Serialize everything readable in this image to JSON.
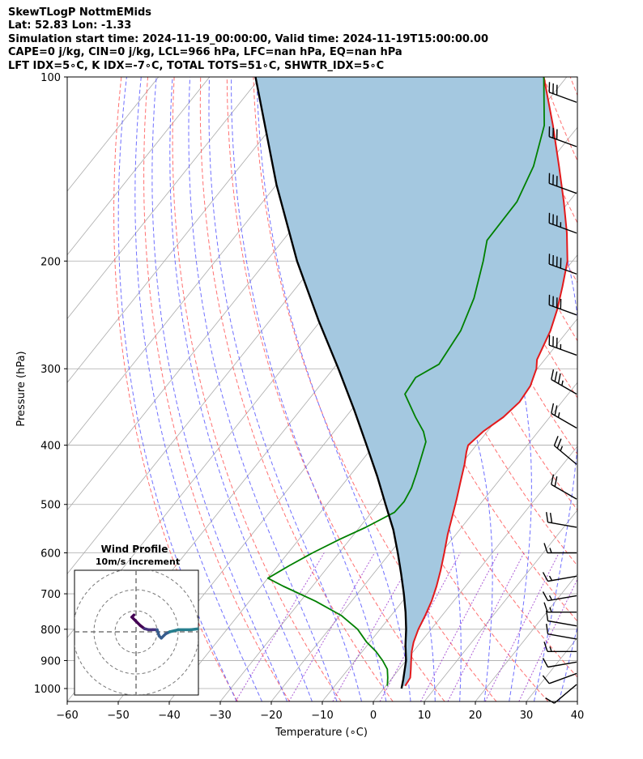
{
  "header": {
    "line1": "SkewTLogP NottmEMids",
    "line2": "Lat: 52.83   Lon: -1.33",
    "line3": "Simulation start time: 2024-11-19_00:00:00, Valid time: 2024-11-19T15:00:00.00",
    "line4": "CAPE=0 j/kg, CIN=0 j/kg, LCL=966 hPa, LFC=nan hPa, EQ=nan hPa",
    "line5": "LFT IDX=5∘C, K IDX=-7∘C, TOTAL TOTS=51∘C, SHWTR_IDX=5∘C"
  },
  "colors": {
    "temperature": "#e31a1c",
    "dewpoint": "#008000",
    "parcel": "#000000",
    "cape_fill": "#a4c8e0",
    "dry_adiabat": "#ff6060",
    "moist_adiabat": "#6060ff",
    "mixing_ratio": "#9933cc",
    "isotherm": "#aaaaaa"
  },
  "chart_data": {
    "type": "line",
    "title": "SkewTLogP NottmEMids",
    "xlabel": "Temperature (∘C)",
    "ylabel": "Pressure (hPa)",
    "xlim": [
      -60,
      40
    ],
    "ylim": [
      1050,
      100
    ],
    "yscale": "log",
    "skew": true,
    "x_ticks": [
      -60,
      -50,
      -40,
      -30,
      -20,
      -10,
      0,
      10,
      20,
      30,
      40
    ],
    "x_tick_labels": [
      "−60",
      "−50",
      "−40",
      "−30",
      "−20",
      "−10",
      "0",
      "10",
      "20",
      "30",
      "40"
    ],
    "y_ticks": [
      1000,
      900,
      800,
      700,
      600,
      500,
      400,
      300,
      200,
      100
    ],
    "y_tick_labels": [
      "1000",
      "900",
      "800",
      "700",
      "600",
      "500",
      "400",
      "300",
      "200",
      "100"
    ],
    "series": [
      {
        "name": "Temperature",
        "points": [
          [
            990,
            3.8
          ],
          [
            960,
            3.5
          ],
          [
            930,
            2.3
          ],
          [
            900,
            1.0
          ],
          [
            870,
            -0.3
          ],
          [
            840,
            -1.4
          ],
          [
            800,
            -2.5
          ],
          [
            760,
            -3.3
          ],
          [
            720,
            -4.3
          ],
          [
            680,
            -5.7
          ],
          [
            640,
            -7.4
          ],
          [
            600,
            -9.4
          ],
          [
            560,
            -11.6
          ],
          [
            520,
            -13.7
          ],
          [
            490,
            -15.4
          ],
          [
            460,
            -17.3
          ],
          [
            430,
            -19.3
          ],
          [
            410,
            -20.9
          ],
          [
            400,
            -21.6
          ],
          [
            380,
            -20.8
          ],
          [
            360,
            -19.1
          ],
          [
            340,
            -18.3
          ],
          [
            320,
            -18.7
          ],
          [
            300,
            -20.2
          ],
          [
            290,
            -21.5
          ],
          [
            260,
            -23.4
          ],
          [
            240,
            -25.4
          ],
          [
            220,
            -28.0
          ],
          [
            200,
            -31.0
          ],
          [
            180,
            -35.5
          ],
          [
            160,
            -41.0
          ],
          [
            140,
            -47.5
          ],
          [
            120,
            -55.1
          ],
          [
            100,
            -64.5
          ]
        ]
      },
      {
        "name": "Dewpoint",
        "points": [
          [
            990,
            0.3
          ],
          [
            960,
            -0.9
          ],
          [
            930,
            -2.3
          ],
          [
            900,
            -4.6
          ],
          [
            870,
            -7.3
          ],
          [
            840,
            -10.6
          ],
          [
            800,
            -14.4
          ],
          [
            760,
            -19.7
          ],
          [
            720,
            -27.0
          ],
          [
            680,
            -35.8
          ],
          [
            660,
            -40.0
          ],
          [
            630,
            -37.8
          ],
          [
            600,
            -35.2
          ],
          [
            570,
            -32.0
          ],
          [
            545,
            -28.8
          ],
          [
            515,
            -25.5
          ],
          [
            495,
            -25.3
          ],
          [
            470,
            -26.0
          ],
          [
            445,
            -27.3
          ],
          [
            420,
            -28.8
          ],
          [
            395,
            -30.4
          ],
          [
            380,
            -32.5
          ],
          [
            360,
            -36.3
          ],
          [
            330,
            -42.0
          ],
          [
            310,
            -42.5
          ],
          [
            295,
            -40.0
          ],
          [
            260,
            -41.0
          ],
          [
            230,
            -43.5
          ],
          [
            200,
            -47.5
          ],
          [
            185,
            -50.0
          ],
          [
            160,
            -50.2
          ],
          [
            140,
            -52.5
          ],
          [
            120,
            -56.8
          ],
          [
            100,
            -64.5
          ]
        ]
      },
      {
        "name": "Parcel",
        "points": [
          [
            1000,
            3.5
          ],
          [
            966,
            2.4
          ],
          [
            900,
            0.0
          ],
          [
            850,
            -2.5
          ],
          [
            800,
            -4.9
          ],
          [
            750,
            -7.7
          ],
          [
            700,
            -10.9
          ],
          [
            650,
            -14.5
          ],
          [
            600,
            -18.5
          ],
          [
            550,
            -23.0
          ],
          [
            500,
            -28.5
          ],
          [
            450,
            -34.5
          ],
          [
            400,
            -41.5
          ],
          [
            350,
            -49.5
          ],
          [
            300,
            -59.0
          ],
          [
            250,
            -70.5
          ],
          [
            200,
            -84.0
          ],
          [
            150,
            -100.0
          ],
          [
            100,
            -121.0
          ]
        ]
      }
    ],
    "wind_barbs_pressure": [
      985,
      945,
      905,
      870,
      830,
      790,
      750,
      705,
      655,
      600,
      545,
      490,
      430,
      375,
      330,
      285,
      245,
      210,
      180,
      155,
      130,
      110
    ],
    "wind_barbs_speed_kt": [
      10,
      10,
      10,
      15,
      10,
      10,
      15,
      15,
      15,
      15,
      20,
      20,
      25,
      25,
      35,
      35,
      40,
      40,
      35,
      30,
      30,
      30
    ],
    "wind_barbs_dir_deg": [
      230,
      250,
      260,
      270,
      280,
      280,
      270,
      260,
      260,
      270,
      280,
      300,
      310,
      300,
      300,
      290,
      290,
      290,
      290,
      290,
      290,
      290
    ],
    "inset": {
      "title": "Wind Profile",
      "subtitle": "10m/s increment",
      "hodograph_ms": [
        [
          -1,
          -8
        ],
        [
          -2,
          -7
        ],
        [
          0,
          -5
        ],
        [
          2,
          -3
        ],
        [
          4,
          -1.5
        ],
        [
          6,
          -1
        ],
        [
          8,
          -1
        ],
        [
          10,
          -1
        ],
        [
          11,
          2
        ],
        [
          12,
          3
        ],
        [
          14,
          1
        ],
        [
          16,
          0
        ],
        [
          20,
          -1
        ],
        [
          26,
          -1
        ],
        [
          30,
          -1.5
        ]
      ],
      "rings_ms": [
        10,
        20,
        30
      ]
    }
  }
}
